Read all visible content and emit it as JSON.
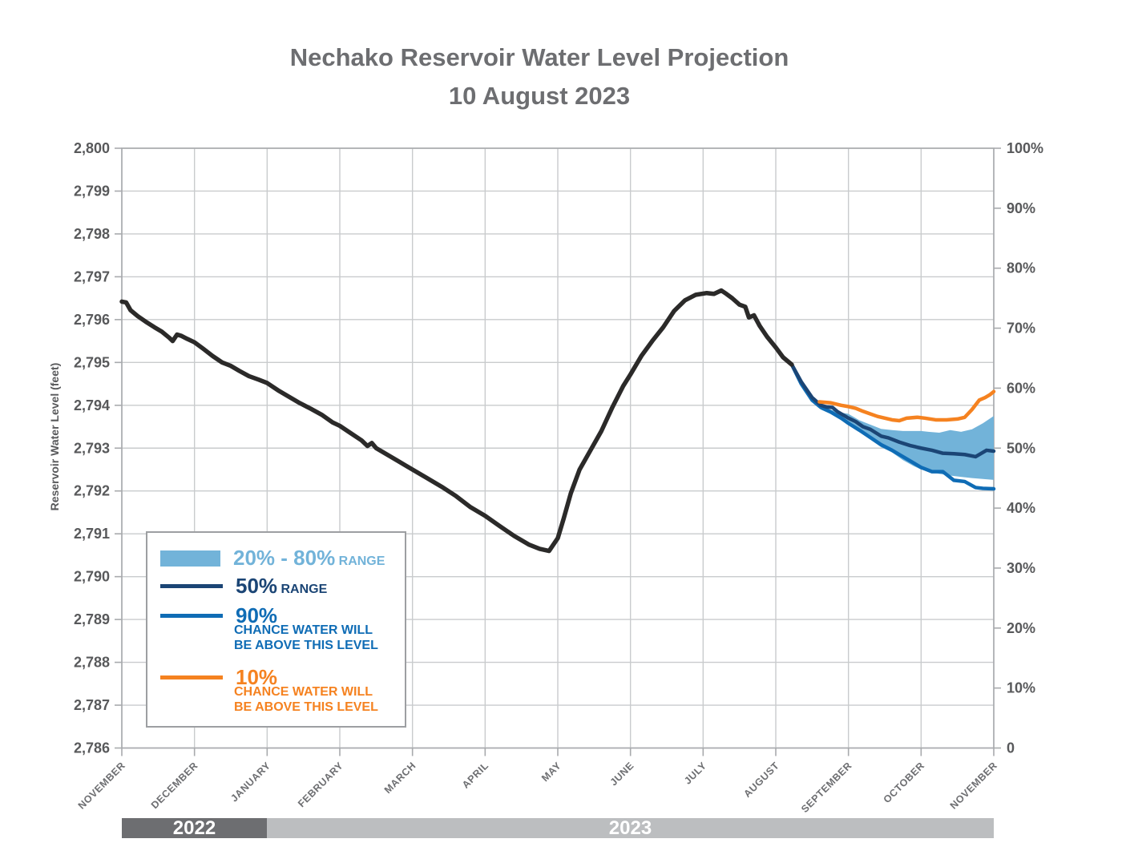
{
  "title": {
    "line1": "Nechako Reservoir Water Level Projection",
    "line2": "10 August 2023"
  },
  "y_left_axis": {
    "title": "Reservoir Water Level (feet)",
    "tick_labels": [
      "2,800",
      "2,799",
      "2,798",
      "2,797",
      "2,796",
      "2,795",
      "2,794",
      "2,793",
      "2,792",
      "2,791",
      "2,790",
      "2,789",
      "2,788",
      "2,787",
      "2,786"
    ]
  },
  "y_right_axis": {
    "tick_labels": [
      "100%",
      "90%",
      "80%",
      "70%",
      "60%",
      "50%",
      "40%",
      "30%",
      "20%",
      "10%",
      "0"
    ]
  },
  "x_axis": {
    "tick_labels": [
      "NOVEMBER",
      "DECEMBER",
      "JANUARY",
      "FEBRUARY",
      "MARCH",
      "APRIL",
      "MAY",
      "JUNE",
      "JULY",
      "AUGUST",
      "SEPTEMBER",
      "OCTOBER",
      "NOVEMBER"
    ]
  },
  "year_bar": {
    "year_left": "2022",
    "year_right": "2023"
  },
  "legend": {
    "range_band": {
      "big": "20% - 80%",
      "small": "RANGE"
    },
    "median": {
      "big": "50%",
      "small": "RANGE"
    },
    "p90": {
      "big": "90%",
      "sub1": "CHANCE WATER WILL",
      "sub2": "BE ABOVE THIS LEVEL"
    },
    "p10": {
      "big": "10%",
      "sub1": "CHANCE WATER WILL",
      "sub2": "BE ABOVE THIS LEVEL"
    }
  },
  "colors": {
    "black": "#2b2a29",
    "navy": "#1b4575",
    "blue": "#0f6cb5",
    "orange": "#f58220",
    "band": "#72b3d9",
    "grid": "#c9cbcd",
    "axis": "#a8aaad",
    "tick_text": "#58595b",
    "month_text": "#6d6e71",
    "title_text": "#6d6e71",
    "bar_dark": "#6d6e71",
    "bar_light": "#bcbec0"
  },
  "chart_data": {
    "type": "line",
    "title": "Nechako Reservoir Water Level Projection 10 August 2023",
    "x_unit": "months from 1 November 2022",
    "y_left_label": "Reservoir Water Level (feet)",
    "y_left_range": [
      2786,
      2800
    ],
    "y_right_range_percent": [
      0,
      100
    ],
    "x_range_months": [
      0,
      12
    ],
    "grid": "on",
    "legend_position": "lower-left",
    "series": [
      {
        "name": "historical_level",
        "color": "black",
        "width": 5.5,
        "points": [
          [
            0,
            2796.42
          ],
          [
            0.06,
            2796.4
          ],
          [
            0.12,
            2796.22
          ],
          [
            0.22,
            2796.08
          ],
          [
            0.33,
            2795.95
          ],
          [
            0.45,
            2795.82
          ],
          [
            0.55,
            2795.72
          ],
          [
            0.65,
            2795.58
          ],
          [
            0.7,
            2795.5
          ],
          [
            0.76,
            2795.65
          ],
          [
            0.82,
            2795.62
          ],
          [
            0.9,
            2795.55
          ],
          [
            1.0,
            2795.47
          ],
          [
            1.12,
            2795.32
          ],
          [
            1.25,
            2795.15
          ],
          [
            1.38,
            2795.0
          ],
          [
            1.5,
            2794.92
          ],
          [
            1.62,
            2794.8
          ],
          [
            1.75,
            2794.68
          ],
          [
            1.88,
            2794.6
          ],
          [
            2.0,
            2794.52
          ],
          [
            2.15,
            2794.35
          ],
          [
            2.3,
            2794.2
          ],
          [
            2.45,
            2794.05
          ],
          [
            2.6,
            2793.92
          ],
          [
            2.75,
            2793.78
          ],
          [
            2.9,
            2793.6
          ],
          [
            3.0,
            2793.52
          ],
          [
            3.15,
            2793.35
          ],
          [
            3.3,
            2793.18
          ],
          [
            3.38,
            2793.05
          ],
          [
            3.44,
            2793.12
          ],
          [
            3.5,
            2793.0
          ],
          [
            3.65,
            2792.85
          ],
          [
            3.8,
            2792.7
          ],
          [
            4.0,
            2792.5
          ],
          [
            4.2,
            2792.3
          ],
          [
            4.4,
            2792.1
          ],
          [
            4.6,
            2791.88
          ],
          [
            4.8,
            2791.62
          ],
          [
            5.0,
            2791.42
          ],
          [
            5.2,
            2791.18
          ],
          [
            5.4,
            2790.95
          ],
          [
            5.6,
            2790.75
          ],
          [
            5.75,
            2790.65
          ],
          [
            5.88,
            2790.6
          ],
          [
            6.0,
            2790.9
          ],
          [
            6.08,
            2791.35
          ],
          [
            6.18,
            2791.95
          ],
          [
            6.3,
            2792.5
          ],
          [
            6.45,
            2792.95
          ],
          [
            6.6,
            2793.4
          ],
          [
            6.75,
            2793.95
          ],
          [
            6.9,
            2794.45
          ],
          [
            7.0,
            2794.72
          ],
          [
            7.15,
            2795.15
          ],
          [
            7.3,
            2795.5
          ],
          [
            7.45,
            2795.82
          ],
          [
            7.6,
            2796.2
          ],
          [
            7.75,
            2796.45
          ],
          [
            7.9,
            2796.58
          ],
          [
            8.05,
            2796.62
          ],
          [
            8.15,
            2796.6
          ],
          [
            8.25,
            2796.68
          ],
          [
            8.32,
            2796.6
          ],
          [
            8.4,
            2796.5
          ],
          [
            8.5,
            2796.35
          ],
          [
            8.58,
            2796.3
          ],
          [
            8.63,
            2796.05
          ],
          [
            8.7,
            2796.1
          ],
          [
            8.78,
            2795.85
          ],
          [
            8.88,
            2795.6
          ],
          [
            9.0,
            2795.35
          ],
          [
            9.1,
            2795.12
          ],
          [
            9.22,
            2794.95
          ]
        ]
      },
      {
        "name": "p50_range",
        "color": "navy",
        "width": 4.5,
        "points": [
          [
            9.22,
            2794.95
          ],
          [
            9.35,
            2794.55
          ],
          [
            9.5,
            2794.18
          ],
          [
            9.62,
            2794.0
          ],
          [
            9.7,
            2793.96
          ],
          [
            9.78,
            2793.95
          ],
          [
            9.85,
            2793.85
          ],
          [
            10.0,
            2793.7
          ],
          [
            10.1,
            2793.62
          ],
          [
            10.2,
            2793.5
          ],
          [
            10.3,
            2793.44
          ],
          [
            10.45,
            2793.28
          ],
          [
            10.55,
            2793.24
          ],
          [
            10.7,
            2793.14
          ],
          [
            10.85,
            2793.06
          ],
          [
            11.0,
            2793.0
          ],
          [
            11.15,
            2792.95
          ],
          [
            11.3,
            2792.88
          ],
          [
            11.45,
            2792.87
          ],
          [
            11.6,
            2792.85
          ],
          [
            11.75,
            2792.8
          ],
          [
            11.9,
            2792.95
          ],
          [
            12.0,
            2792.93
          ]
        ]
      },
      {
        "name": "p90_chance_above",
        "color": "blue",
        "width": 4.5,
        "points": [
          [
            9.22,
            2794.95
          ],
          [
            9.35,
            2794.5
          ],
          [
            9.5,
            2794.12
          ],
          [
            9.62,
            2793.95
          ],
          [
            9.75,
            2793.85
          ],
          [
            9.9,
            2793.7
          ],
          [
            10.0,
            2793.58
          ],
          [
            10.15,
            2793.42
          ],
          [
            10.3,
            2793.25
          ],
          [
            10.45,
            2793.08
          ],
          [
            10.6,
            2792.95
          ],
          [
            10.75,
            2792.8
          ],
          [
            10.9,
            2792.65
          ],
          [
            11.0,
            2792.55
          ],
          [
            11.15,
            2792.45
          ],
          [
            11.3,
            2792.45
          ],
          [
            11.45,
            2792.25
          ],
          [
            11.6,
            2792.22
          ],
          [
            11.75,
            2792.08
          ],
          [
            11.85,
            2792.06
          ],
          [
            12.0,
            2792.05
          ]
        ]
      },
      {
        "name": "p10_chance_above",
        "color": "orange",
        "width": 4.5,
        "points": [
          [
            9.6,
            2794.08
          ],
          [
            9.75,
            2794.06
          ],
          [
            9.9,
            2794.0
          ],
          [
            10.0,
            2793.97
          ],
          [
            10.1,
            2793.93
          ],
          [
            10.2,
            2793.86
          ],
          [
            10.3,
            2793.8
          ],
          [
            10.4,
            2793.74
          ],
          [
            10.5,
            2793.7
          ],
          [
            10.6,
            2793.66
          ],
          [
            10.7,
            2793.64
          ],
          [
            10.8,
            2793.7
          ],
          [
            10.95,
            2793.72
          ],
          [
            11.05,
            2793.7
          ],
          [
            11.2,
            2793.66
          ],
          [
            11.35,
            2793.66
          ],
          [
            11.5,
            2793.68
          ],
          [
            11.6,
            2793.72
          ],
          [
            11.7,
            2793.9
          ],
          [
            11.8,
            2794.12
          ],
          [
            11.88,
            2794.18
          ],
          [
            11.95,
            2794.25
          ],
          [
            12.0,
            2794.32
          ]
        ]
      }
    ],
    "band_20_80": {
      "name": "range_20_80_band",
      "color": "band",
      "points_x_upper_lower": [
        [
          9.62,
          2793.98,
          2793.9
        ],
        [
          9.75,
          2793.9,
          2793.8
        ],
        [
          9.9,
          2793.83,
          2793.65
        ],
        [
          10.0,
          2793.8,
          2793.55
        ],
        [
          10.15,
          2793.65,
          2793.38
        ],
        [
          10.3,
          2793.55,
          2793.2
        ],
        [
          10.45,
          2793.45,
          2793.02
        ],
        [
          10.6,
          2793.42,
          2792.9
        ],
        [
          10.75,
          2793.4,
          2792.72
        ],
        [
          10.9,
          2793.4,
          2792.58
        ],
        [
          11.0,
          2793.4,
          2792.5
        ],
        [
          11.1,
          2793.38,
          2792.46
        ],
        [
          11.25,
          2793.36,
          2792.4
        ],
        [
          11.4,
          2793.42,
          2792.36
        ],
        [
          11.55,
          2793.38,
          2792.33
        ],
        [
          11.7,
          2793.44,
          2792.3
        ],
        [
          11.85,
          2793.58,
          2792.28
        ],
        [
          12.0,
          2793.75,
          2792.26
        ]
      ]
    }
  }
}
